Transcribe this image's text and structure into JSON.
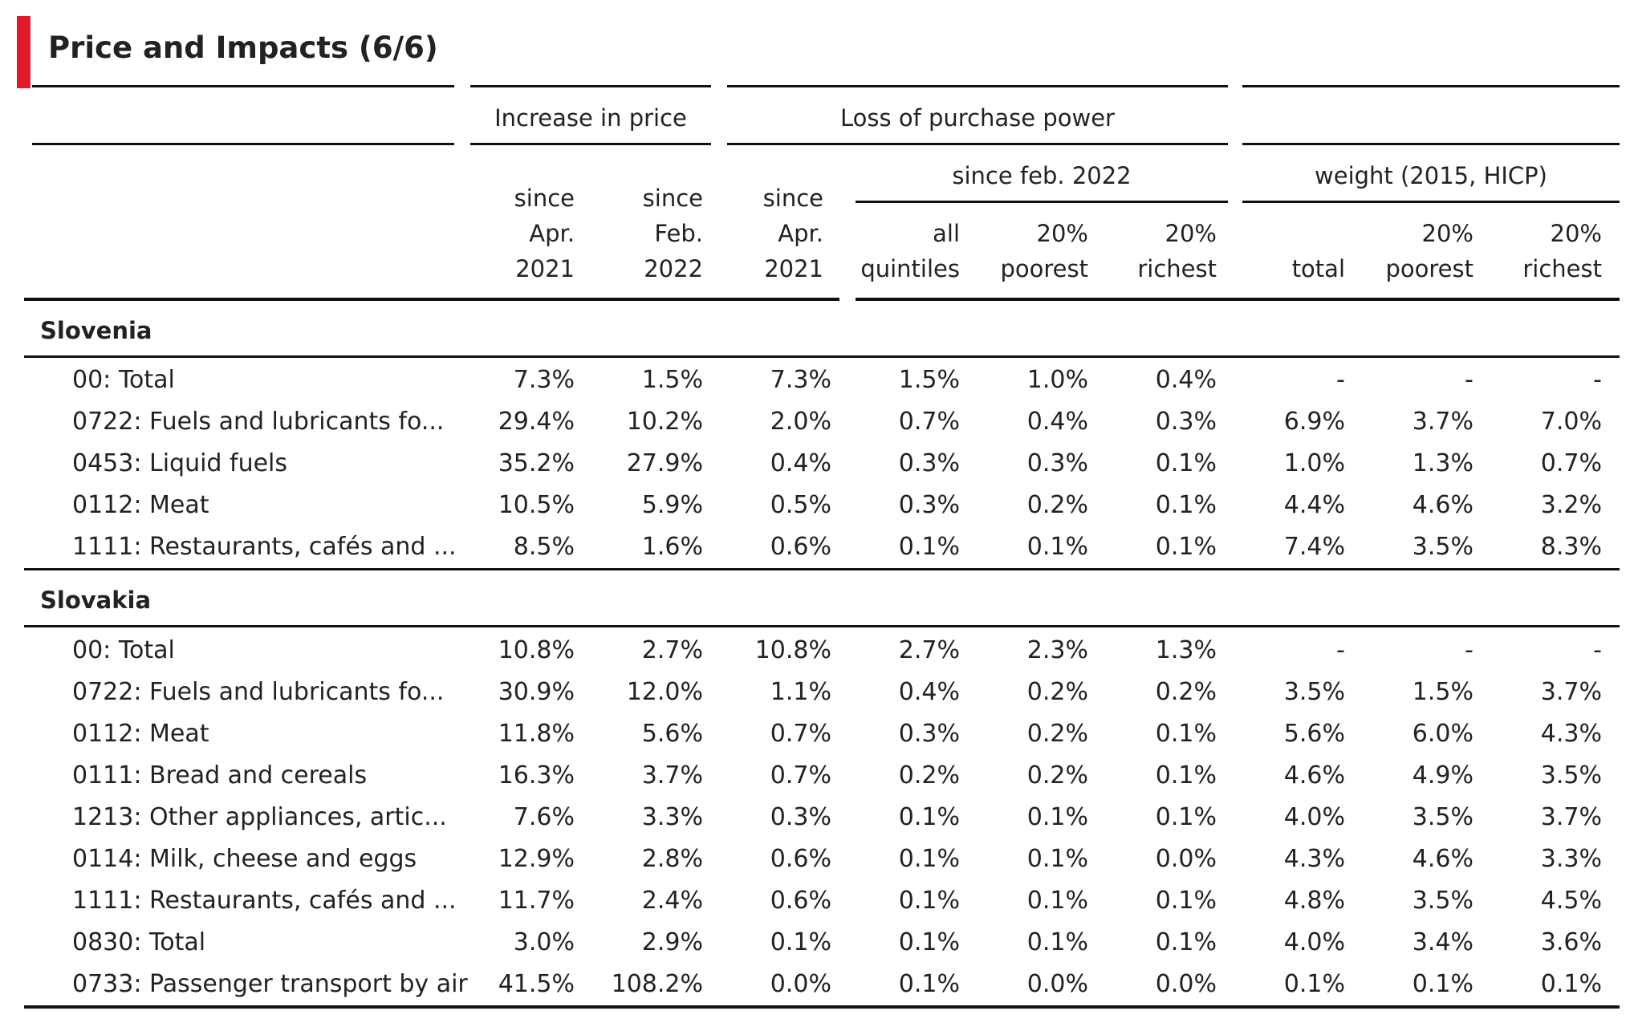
{
  "title": "Price and Impacts (6/6)",
  "headers": {
    "increase_in_price": "Increase in price",
    "loss_of_purchase_power": "Loss of purchase power",
    "since_feb_2022": "since feb. 2022",
    "weight": "weight (2015, HICP)",
    "col1": [
      "since",
      "Apr.",
      "2021"
    ],
    "col2": [
      "since",
      "Feb.",
      "2022"
    ],
    "col3": [
      "since",
      "Apr.",
      "2021"
    ],
    "col4": [
      "all",
      "quintiles"
    ],
    "col5": [
      "20%",
      "poorest"
    ],
    "col6": [
      "20%",
      "richest"
    ],
    "col7": [
      "total"
    ],
    "col8": [
      "20%",
      "poorest"
    ],
    "col9": [
      "20%",
      "richest"
    ]
  },
  "groups": [
    {
      "name": "Slovenia",
      "rows": [
        {
          "label": "00: Total",
          "values": [
            "7.3%",
            "1.5%",
            "7.3%",
            "1.5%",
            "1.0%",
            "0.4%",
            "-",
            "-",
            "-"
          ]
        },
        {
          "label": "0722: Fuels and lubricants fo...",
          "values": [
            "29.4%",
            "10.2%",
            "2.0%",
            "0.7%",
            "0.4%",
            "0.3%",
            "6.9%",
            "3.7%",
            "7.0%"
          ]
        },
        {
          "label": "0453: Liquid fuels",
          "values": [
            "35.2%",
            "27.9%",
            "0.4%",
            "0.3%",
            "0.3%",
            "0.1%",
            "1.0%",
            "1.3%",
            "0.7%"
          ]
        },
        {
          "label": "0112: Meat",
          "values": [
            "10.5%",
            "5.9%",
            "0.5%",
            "0.3%",
            "0.2%",
            "0.1%",
            "4.4%",
            "4.6%",
            "3.2%"
          ]
        },
        {
          "label": "1111: Restaurants, cafés and ...",
          "values": [
            "8.5%",
            "1.6%",
            "0.6%",
            "0.1%",
            "0.1%",
            "0.1%",
            "7.4%",
            "3.5%",
            "8.3%"
          ]
        }
      ]
    },
    {
      "name": "Slovakia",
      "rows": [
        {
          "label": "00: Total",
          "values": [
            "10.8%",
            "2.7%",
            "10.8%",
            "2.7%",
            "2.3%",
            "1.3%",
            "-",
            "-",
            "-"
          ]
        },
        {
          "label": "0722: Fuels and lubricants fo...",
          "values": [
            "30.9%",
            "12.0%",
            "1.1%",
            "0.4%",
            "0.2%",
            "0.2%",
            "3.5%",
            "1.5%",
            "3.7%"
          ]
        },
        {
          "label": "0112: Meat",
          "values": [
            "11.8%",
            "5.6%",
            "0.7%",
            "0.3%",
            "0.2%",
            "0.1%",
            "5.6%",
            "6.0%",
            "4.3%"
          ]
        },
        {
          "label": "0111: Bread and cereals",
          "values": [
            "16.3%",
            "3.7%",
            "0.7%",
            "0.2%",
            "0.2%",
            "0.1%",
            "4.6%",
            "4.9%",
            "3.5%"
          ]
        },
        {
          "label": "1213: Other appliances, artic...",
          "values": [
            "7.6%",
            "3.3%",
            "0.3%",
            "0.1%",
            "0.1%",
            "0.1%",
            "4.0%",
            "3.5%",
            "3.7%"
          ]
        },
        {
          "label": "0114: Milk, cheese and eggs",
          "values": [
            "12.9%",
            "2.8%",
            "0.6%",
            "0.1%",
            "0.1%",
            "0.0%",
            "4.3%",
            "4.6%",
            "3.3%"
          ]
        },
        {
          "label": "1111: Restaurants, cafés and ...",
          "values": [
            "11.7%",
            "2.4%",
            "0.6%",
            "0.1%",
            "0.1%",
            "0.1%",
            "4.8%",
            "3.5%",
            "4.5%"
          ]
        },
        {
          "label": "0830: Total",
          "values": [
            "3.0%",
            "2.9%",
            "0.1%",
            "0.1%",
            "0.1%",
            "0.1%",
            "4.0%",
            "3.4%",
            "3.6%"
          ]
        },
        {
          "label": "0733: Passenger transport by air",
          "values": [
            "41.5%",
            "108.2%",
            "0.0%",
            "0.1%",
            "0.0%",
            "0.0%",
            "0.1%",
            "0.1%",
            "0.1%"
          ]
        }
      ]
    }
  ]
}
